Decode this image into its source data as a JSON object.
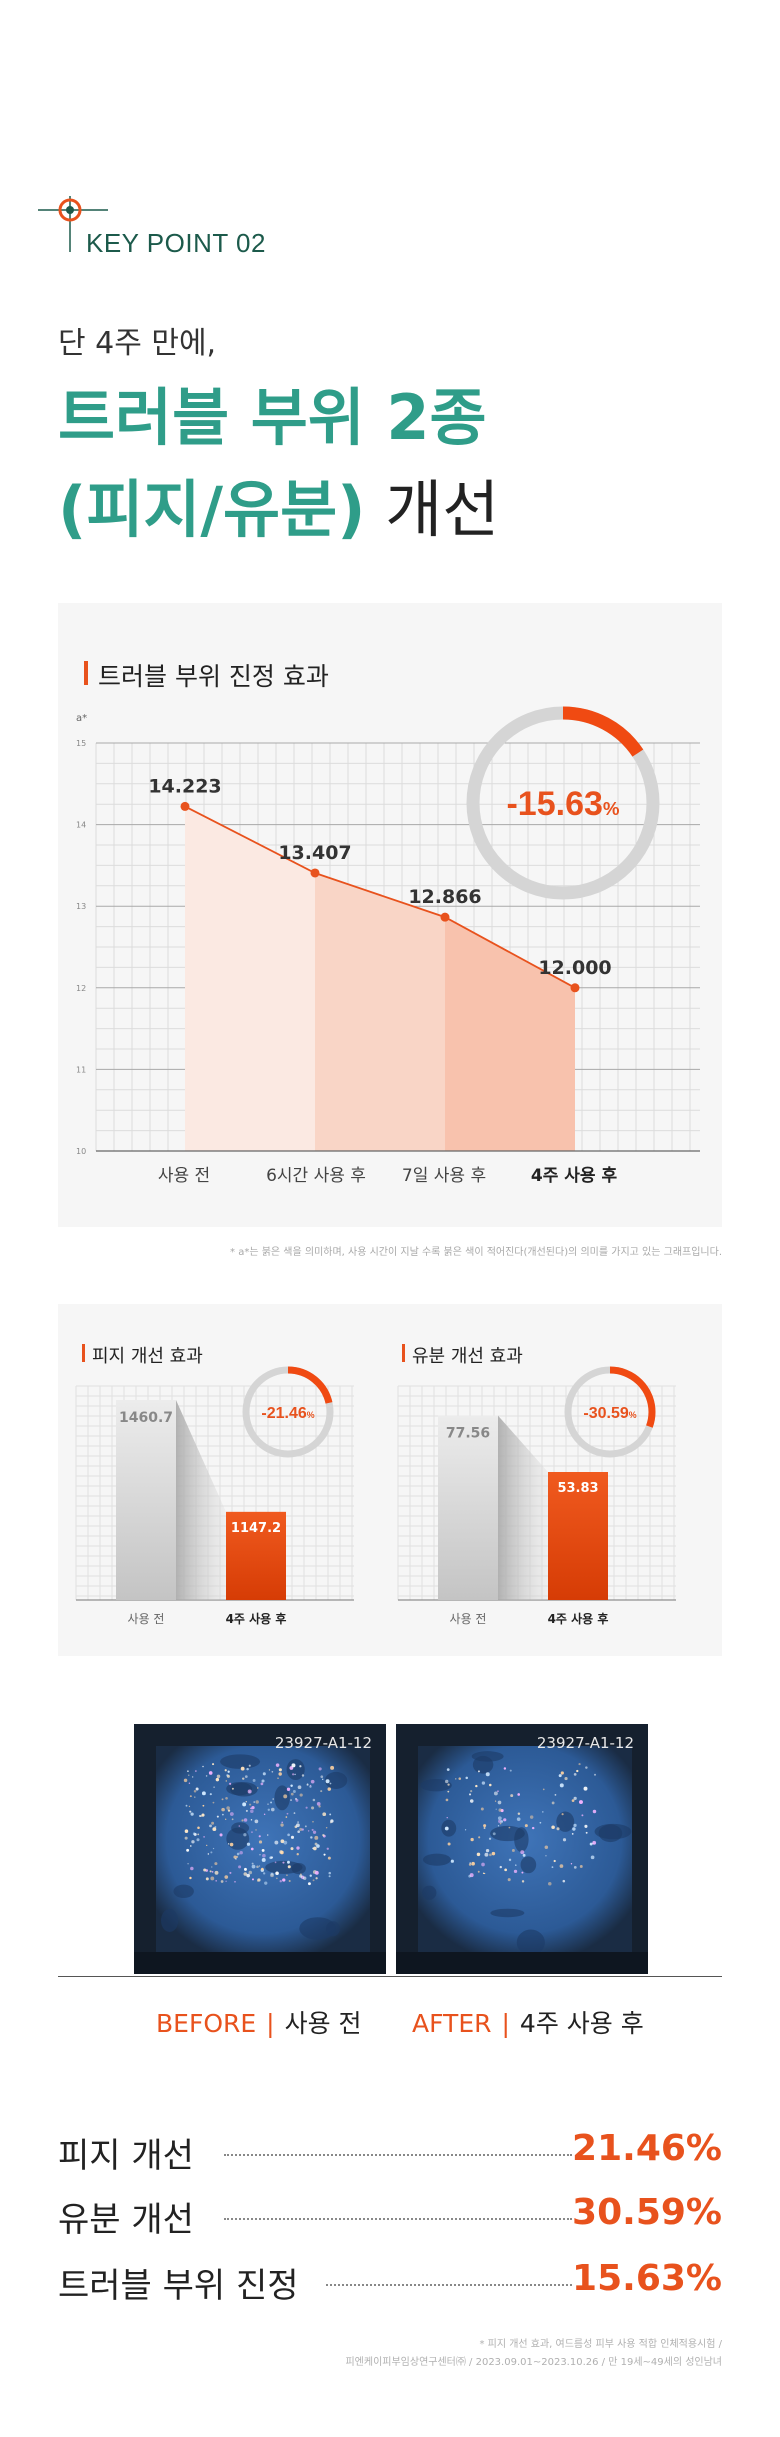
{
  "header": {
    "key_point": "KEY POINT  02",
    "intro": "단 4주 만에,",
    "headline_line1": "트러블 부위 2종",
    "headline_paren": "(피지/유분)",
    "headline_suffix": " 개선"
  },
  "main_chart": {
    "title": "트러블 부위 진정 효과",
    "percent_value": "-15.63",
    "percent_sign": "%",
    "note": "* a*는 붉은 색을 의미하며, 사용 시간이 지날 수록 붉은 색이 적어진다(개선된다)의 의미를 가지고 있는 그래프입니다."
  },
  "sebum_chart": {
    "title": "피지 개선 효과",
    "percent_value": "-21.46",
    "percent_sign": "%"
  },
  "oil_chart": {
    "title": "유분 개선 효과",
    "percent_value": "-30.59",
    "percent_sign": "%"
  },
  "chart_data": [
    {
      "type": "line",
      "ylabel": "a*",
      "ylim": [
        10,
        15
      ],
      "yticks": [
        "10",
        "11",
        "12",
        "13",
        "14",
        "15"
      ],
      "categories": [
        "사용 전",
        "6시간 사용 후",
        "7일 사용 후",
        "4주 사용 후"
      ],
      "values": [
        14.223,
        13.407,
        12.866,
        12.0
      ],
      "value_labels": [
        "14.223",
        "13.407",
        "12.866",
        "12.000"
      ],
      "reduction_percent": -15.63,
      "colors": {
        "line": "#e8521d",
        "ring_bg": "#d5d5d5",
        "ring_fg": "#f04a12"
      }
    },
    {
      "type": "bar",
      "categories": [
        "사용 전",
        "4주 사용 후"
      ],
      "values": [
        1460.7,
        1147.2
      ],
      "value_labels": [
        "1460.7",
        "1147.2"
      ],
      "ylim": [
        900,
        1500
      ],
      "reduction_percent": -21.46
    },
    {
      "type": "bar",
      "categories": [
        "사용 전",
        "4주 사용 후"
      ],
      "values": [
        77.56,
        53.83
      ],
      "value_labels": [
        "77.56",
        "53.83"
      ],
      "ylim": [
        0,
        90
      ],
      "reduction_percent": -30.59
    }
  ],
  "photos": {
    "before_code": "23927-A1-12",
    "after_code": "23927-A1-12",
    "before_caption_tag": "BEFORE",
    "before_caption": "사용 전",
    "after_caption_tag": "AFTER",
    "after_caption": "4주 사용 후",
    "separator": "|"
  },
  "summary": [
    {
      "label": "피지 개선",
      "value": "21.46%"
    },
    {
      "label": "유분 개선",
      "value": "30.59%"
    },
    {
      "label": "트러블 부위 진정",
      "value": "15.63%"
    }
  ],
  "footnote": {
    "line1": "* 피지 개선 효과, 여드름성 피부 사용 적합 인체적용시험 /",
    "line2": "피엔케이피부임상연구센터㈜ / 2023.09.01~2023.10.26 / 만 19세~49세의 성인남녀"
  }
}
